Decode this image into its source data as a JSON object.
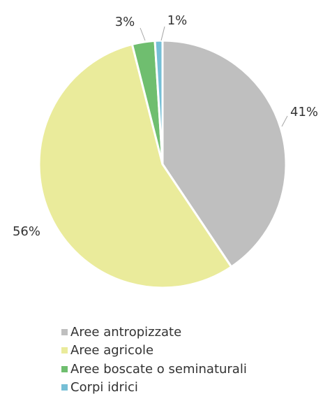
{
  "chart_data": {
    "type": "pie",
    "series": [
      {
        "name": "Aree antropizzate",
        "value": 41,
        "label": "41%",
        "color": "#bfbfbf"
      },
      {
        "name": "Aree agricole",
        "value": 56,
        "label": "56%",
        "color": "#eaeb9b"
      },
      {
        "name": "Aree boscate o seminaturali",
        "value": 3,
        "label": "3%",
        "color": "#6fbe6f"
      },
      {
        "name": "Corpi idrici",
        "value": 1,
        "label": "1%",
        "color": "#76bfd6"
      }
    ],
    "start_angle": "12 o'clock",
    "direction": "clockwise",
    "legend_position": "bottom"
  }
}
